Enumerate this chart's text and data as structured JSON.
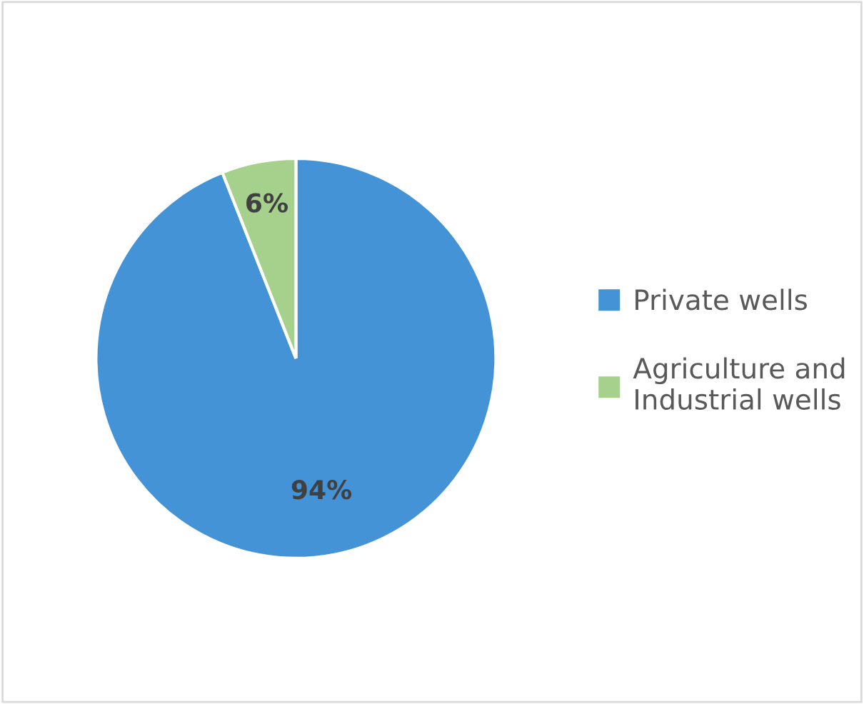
{
  "chart_data": {
    "type": "pie",
    "categories": [
      "Private wells",
      "Agriculture and\nIndustrial wells"
    ],
    "values": [
      94,
      6
    ],
    "colors": [
      "#4393d6",
      "#a6d18c"
    ],
    "value_labels": [
      "94%",
      "6%"
    ],
    "legend": "right"
  }
}
